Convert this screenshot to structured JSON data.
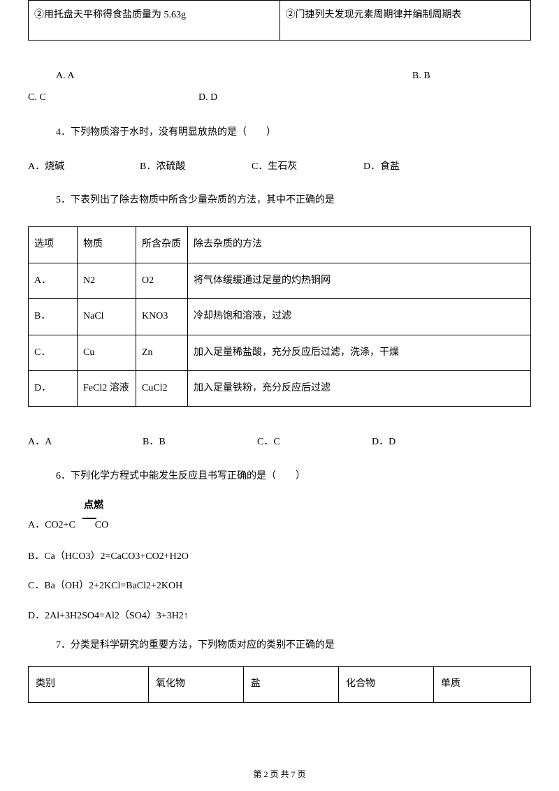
{
  "top_table": {
    "left": "②用托盘天平称得食盐质量为 5.63g",
    "right": "②门捷列夫发现元素周期律并编制周期表"
  },
  "q3_opts": {
    "a": "A. A",
    "b": "B. B",
    "c": "C. C",
    "d": "D. D"
  },
  "q4": {
    "text": "4．下列物质溶于水时，没有明显放热的是（　　）",
    "a": "A．烧碱",
    "b": "B．浓硫酸",
    "c": "C．生石灰",
    "d": "D．食盐"
  },
  "q5": {
    "text": "5．下表列出了除去物质中所含少量杂质的方法，其中不正确的是",
    "headers": {
      "c0": "选项",
      "c1": "物质",
      "c2": "所含杂质",
      "c3": "除去杂质的方法"
    },
    "rows": [
      {
        "c0": "A．",
        "c1": "N2",
        "c2": "O2",
        "c3": "将气体缓缓通过足量的灼热铜网"
      },
      {
        "c0": "B．",
        "c1": "NaCl",
        "c2": "KNO3",
        "c3": "冷却热饱和溶液，过滤"
      },
      {
        "c0": "C．",
        "c1": "Cu",
        "c2": "Zn",
        "c3": "加入足量稀盐酸，充分反应后过滤，洗涤，干燥"
      },
      {
        "c0": "D．",
        "c1": "FeCl2 溶液",
        "c2": "CuCl2",
        "c3": "加入足量铁粉，充分反应后过滤"
      }
    ],
    "opts": {
      "a": "A．A",
      "b": "B．B",
      "c": "C．C",
      "d": "D．D"
    }
  },
  "q6": {
    "text": "6．下列化学方程式中能发生反应且书写正确的是（　　）",
    "combust": "点燃",
    "underline": "━━━",
    "a_prefix": "A．CO2+C",
    "a_suffix": "CO",
    "b": "B．Ca（HCO3）2=CaCO3+CO2+H2O",
    "c": "C．Ba（OH）2+2KCl=BaCl2+2KOH",
    "d": "D．2Al+3H2SO4=Al2（SO4）3+3H2↑"
  },
  "q7": {
    "text": "7．分类是科学研究的重要方法，下列物质对应的类别不正确的是",
    "headers": {
      "c0": "类别",
      "c1": "氧化物",
      "c2": "盐",
      "c3": "化合物",
      "c4": "单质"
    }
  },
  "footer": "第 2 页 共 7 页"
}
